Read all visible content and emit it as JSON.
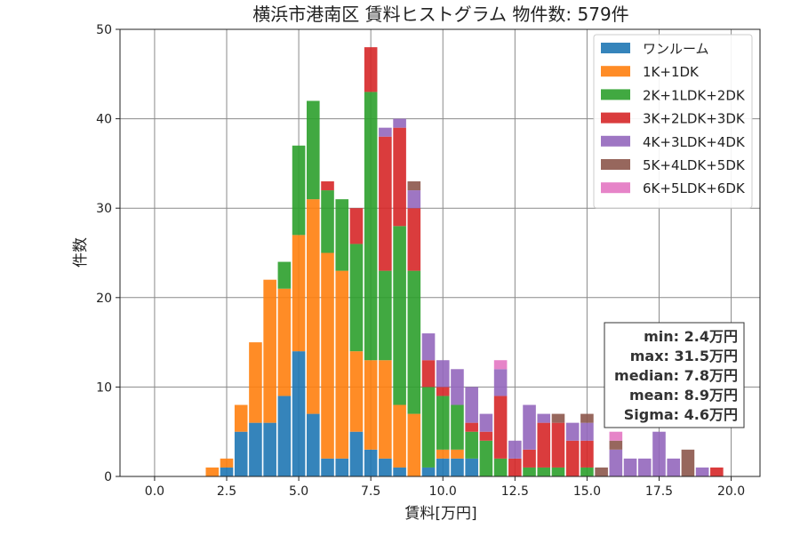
{
  "chart_data": {
    "type": "bar",
    "title": "横浜市港南区 賃料ヒストグラム 物件数: 579件",
    "xlabel": "賃料[万円]",
    "ylabel": "件数",
    "xlim": [
      -1.2,
      21.0
    ],
    "ylim": [
      0,
      50
    ],
    "xticks": [
      "0.0",
      "2.5",
      "5.0",
      "7.5",
      "10.0",
      "12.5",
      "15.0",
      "17.5",
      "20.0"
    ],
    "yticks": [
      "0",
      "10",
      "20",
      "30",
      "40",
      "50"
    ],
    "grid": true,
    "stacked": true,
    "bin_width": 0.5,
    "legend_position": "top-right",
    "x": [
      2,
      2.5,
      3,
      3.5,
      4,
      4.5,
      5,
      5.5,
      6,
      6.5,
      7,
      7.5,
      8,
      8.5,
      9,
      9.5,
      10,
      10.5,
      11,
      11.5,
      12,
      12.5,
      13,
      13.5,
      14,
      14.5,
      15,
      15.5,
      16,
      16.5,
      17,
      17.5,
      18,
      18.5,
      19,
      19.5
    ],
    "series": [
      {
        "name": "ワンルーム",
        "color": "#1f77b4",
        "values": [
          0,
          1,
          5,
          6,
          6,
          9,
          14,
          7,
          2,
          2,
          5,
          3,
          2,
          1,
          0,
          1,
          2,
          2,
          2,
          0,
          0,
          0,
          0,
          0,
          0,
          0,
          0,
          0,
          0,
          0,
          0,
          0,
          0,
          0,
          0,
          0
        ]
      },
      {
        "name": "1K+1DK",
        "color": "#ff7f0e",
        "values": [
          1,
          1,
          3,
          9,
          16,
          12,
          13,
          24,
          23,
          21,
          9,
          10,
          11,
          7,
          7,
          0,
          1,
          1,
          0,
          0,
          0,
          0,
          0,
          0,
          0,
          0,
          0,
          0,
          0,
          0,
          0,
          0,
          0,
          0,
          0,
          0
        ]
      },
      {
        "name": "2K+1LDK+2DK",
        "color": "#2ca02c",
        "values": [
          0,
          0,
          0,
          0,
          0,
          3,
          10,
          11,
          7,
          8,
          12,
          30,
          10,
          20,
          16,
          9,
          6,
          5,
          3,
          4,
          2,
          0,
          1,
          1,
          1,
          0,
          1,
          0,
          0,
          0,
          0,
          0,
          0,
          0,
          0,
          0
        ]
      },
      {
        "name": "3K+2LDK+3DK",
        "color": "#d62728",
        "values": [
          0,
          0,
          0,
          0,
          0,
          0,
          0,
          0,
          1,
          0,
          4,
          5,
          15,
          11,
          7,
          3,
          1,
          0,
          1,
          1,
          7,
          2,
          2,
          5,
          5,
          4,
          3,
          0,
          0,
          0,
          0,
          0,
          0,
          0,
          0,
          1
        ]
      },
      {
        "name": "4K+3LDK+4DK",
        "color": "#9467bd",
        "values": [
          0,
          0,
          0,
          0,
          0,
          0,
          0,
          0,
          0,
          0,
          0,
          0,
          1,
          1,
          2,
          3,
          3,
          4,
          4,
          2,
          3,
          2,
          5,
          1,
          0,
          2,
          2,
          0,
          3,
          2,
          2,
          5,
          2,
          0,
          1,
          0
        ]
      },
      {
        "name": "5K+4LDK+5DK",
        "color": "#8c564b",
        "values": [
          0,
          0,
          0,
          0,
          0,
          0,
          0,
          0,
          0,
          0,
          0,
          0,
          0,
          0,
          1,
          0,
          0,
          0,
          0,
          0,
          0,
          0,
          0,
          0,
          1,
          0,
          1,
          1,
          1,
          0,
          0,
          0,
          0,
          3,
          0,
          0
        ]
      },
      {
        "name": "6K+5LDK+6DK",
        "color": "#e377c2",
        "values": [
          0,
          0,
          0,
          0,
          0,
          0,
          0,
          0,
          0,
          0,
          0,
          0,
          0,
          0,
          0,
          0,
          0,
          0,
          0,
          0,
          1,
          0,
          0,
          0,
          0,
          0,
          0,
          0,
          1,
          0,
          0,
          0,
          0,
          0,
          0,
          0
        ]
      }
    ],
    "stats": {
      "min": "min: 2.4万円",
      "max": "max: 31.5万円",
      "median": "median: 7.8万円",
      "mean": "mean: 8.9万円",
      "sigma": "Sigma: 4.6万円"
    }
  }
}
